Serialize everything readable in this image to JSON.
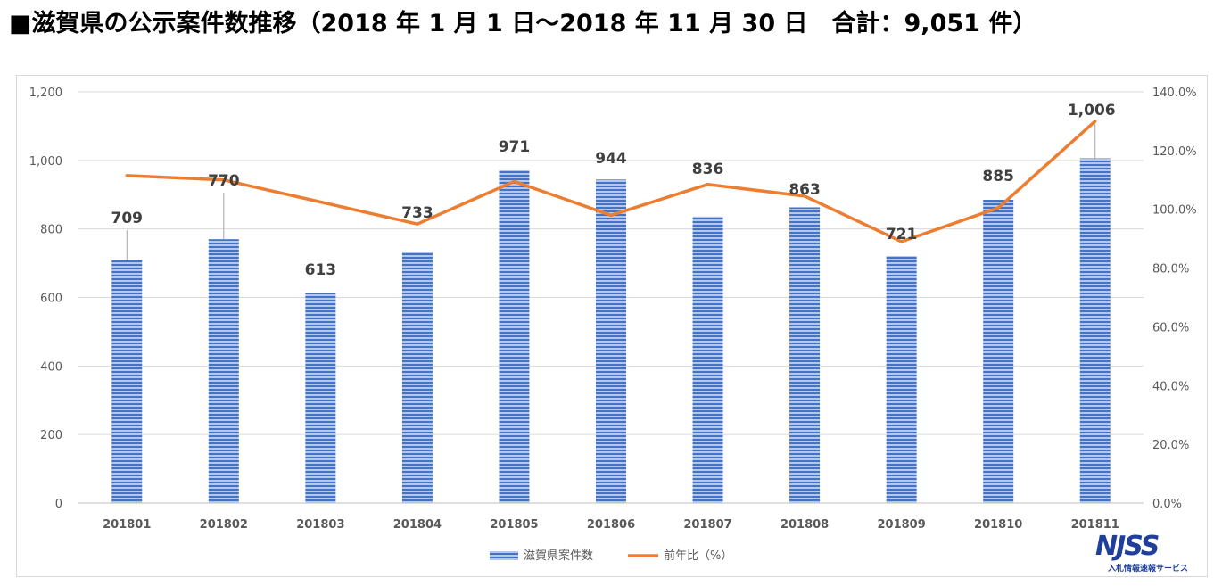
{
  "title": "■滋賀県の公示案件数推移（2018 年 1 月 1 日～2018 年 11 月 30 日　合計：9,051 件）",
  "logo": {
    "main": "NJSS",
    "sub": "入札情報速報サービス"
  },
  "colors": {
    "bar": "#4472c4",
    "bar_light": "#b4c7e7",
    "line": "#ed7d31",
    "grid": "#d9d9d9",
    "axis_text": "#595959",
    "label_text": "#404040"
  },
  "chart_data": {
    "type": "bar",
    "categories": [
      "201801",
      "201802",
      "201803",
      "201804",
      "201805",
      "201806",
      "201807",
      "201808",
      "201809",
      "201810",
      "201811"
    ],
    "series": [
      {
        "name": "滋賀県案件数",
        "type": "bar",
        "axis": "left",
        "values": [
          709,
          770,
          613,
          733,
          971,
          944,
          836,
          863,
          721,
          885,
          1006
        ],
        "labels": [
          "709",
          "770",
          "613",
          "733",
          "971",
          "944",
          "836",
          "863",
          "721",
          "885",
          "1,006"
        ]
      },
      {
        "name": "前年比（%）",
        "type": "line",
        "axis": "right",
        "values": [
          111.5,
          110.0,
          102.5,
          95.0,
          109.5,
          98.0,
          108.5,
          104.5,
          89.0,
          100.5,
          130.0
        ]
      }
    ],
    "ylim": [
      0,
      1200
    ],
    "yticks": [
      "0",
      "200",
      "400",
      "600",
      "800",
      "1,000",
      "1,200"
    ],
    "y2lim": [
      0,
      140
    ],
    "y2ticks": [
      "0.0%",
      "20.0%",
      "40.0%",
      "60.0%",
      "80.0%",
      "100.0%",
      "120.0%",
      "140.0%"
    ],
    "grid": true,
    "legend_position": "bottom-center"
  }
}
